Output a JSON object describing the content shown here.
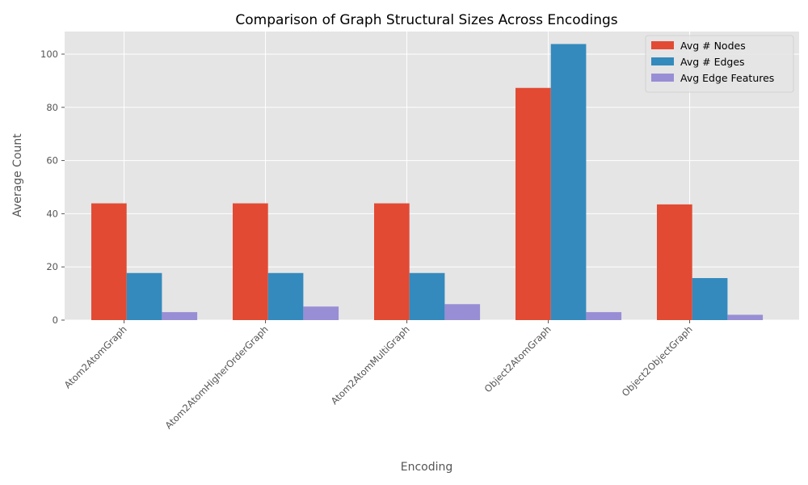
{
  "chart_data": {
    "type": "bar",
    "title": "Comparison of Graph Structural Sizes Across Encodings",
    "xlabel": "Encoding",
    "ylabel": "Average Count",
    "categories": [
      "Atom2AtomGraph",
      "Atom2AtomHigherOrderGraph",
      "Atom2AtomMultiGraph",
      "Object2AtomGraph",
      "Object2ObjectGraph"
    ],
    "series": [
      {
        "name": "Avg # Nodes",
        "color": "#E24A33",
        "values": [
          43.9,
          43.9,
          43.9,
          87.3,
          43.5
        ]
      },
      {
        "name": "Avg # Edges",
        "color": "#348ABD",
        "values": [
          17.7,
          17.7,
          17.7,
          103.8,
          15.8
        ]
      },
      {
        "name": "Avg Edge Features",
        "color": "#988ED5",
        "values": [
          3.0,
          5.1,
          6.0,
          3.0,
          2.0
        ]
      }
    ],
    "ylim": [
      0,
      108.5
    ],
    "yticks": [
      0,
      20,
      40,
      60,
      80,
      100
    ],
    "grid": true,
    "legend_position": "top-right",
    "xtick_rotation": 45
  }
}
